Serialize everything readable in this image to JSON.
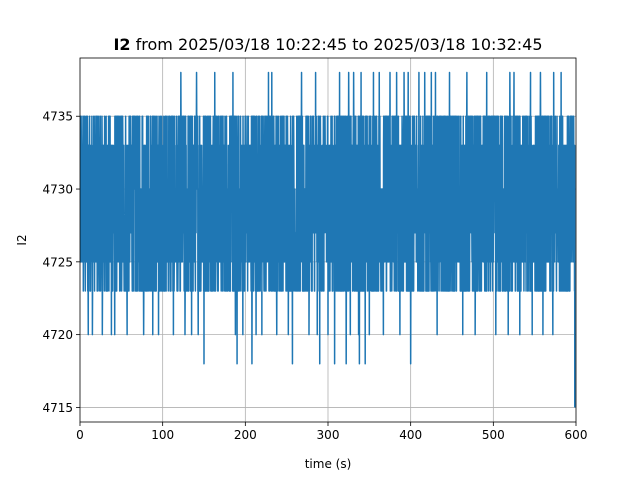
{
  "chart_data": {
    "type": "line",
    "title": {
      "bold": "I2",
      "rest": " from 2025/03/18 10:22:45 to 2025/03/18 10:32:45"
    },
    "xlabel": "time (s)",
    "ylabel": "I2",
    "xlim": [
      0,
      600
    ],
    "ylim": [
      4714,
      4739
    ],
    "xticks": [
      0,
      100,
      200,
      300,
      400,
      500,
      600
    ],
    "yticks": [
      4715,
      4720,
      4725,
      4730,
      4735
    ],
    "grid": true,
    "line_color": "#1f77b4",
    "series": [
      {
        "levels": [
          4718,
          4720,
          4723,
          4725,
          4727,
          4730,
          4733,
          4735,
          4738
        ],
        "typical_range": [
          4723,
          4735
        ],
        "spikes_to_4738_at": [
          122,
          141,
          163,
          185,
          228,
          232,
          268,
          285,
          314,
          325,
          331,
          340,
          355,
          362,
          375,
          383,
          392,
          397,
          410,
          417,
          425,
          430,
          447,
          468,
          492,
          520,
          525,
          545,
          557,
          573,
          582
        ],
        "dips_to_4720_at": [
          10,
          15,
          27,
          38,
          42,
          57,
          77,
          88,
          95,
          113,
          127,
          135,
          143,
          163,
          188,
          197,
          213,
          220,
          238,
          252,
          268,
          277,
          287,
          300,
          327,
          337,
          350,
          367,
          387,
          397,
          410,
          432,
          447,
          463,
          478,
          503,
          518,
          532,
          547,
          560,
          572
        ],
        "dips_to_4718_at": [
          150,
          190,
          208,
          257,
          290,
          308,
          322,
          338,
          345,
          400
        ],
        "end_drop": [
          598.5,
          4715
        ]
      }
    ]
  }
}
